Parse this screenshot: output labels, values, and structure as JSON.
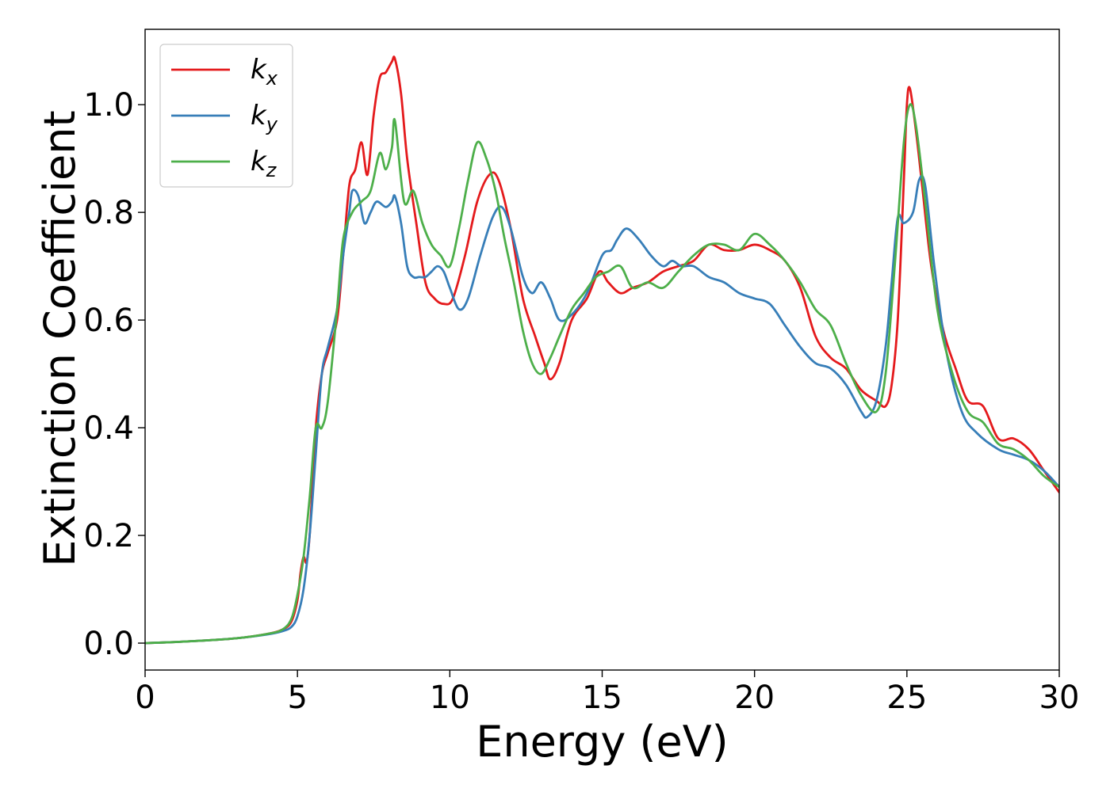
{
  "chart_data": {
    "type": "line",
    "title": "",
    "xlabel": "Energy (eV)",
    "ylabel": "Extinction Coefficient",
    "xlim": [
      0,
      30
    ],
    "ylim": [
      -0.05,
      1.14
    ],
    "xticks": [
      0,
      5,
      10,
      15,
      20,
      25,
      30
    ],
    "xtick_labels": [
      "0",
      "5",
      "10",
      "15",
      "20",
      "25",
      "30"
    ],
    "yticks": [
      0.0,
      0.2,
      0.4,
      0.6,
      0.8,
      1.0
    ],
    "ytick_labels": [
      "0.0",
      "0.2",
      "0.4",
      "0.6",
      "0.8",
      "1.0"
    ],
    "grid": false,
    "legend_position": "top-left",
    "series": [
      {
        "name": "k",
        "subscript": "x",
        "color": "#e41a1c",
        "x": [
          0,
          1,
          2,
          3,
          4,
          4.5,
          4.8,
          5.0,
          5.1,
          5.2,
          5.3,
          5.4,
          5.5,
          5.6,
          5.8,
          6.0,
          6.3,
          6.5,
          6.7,
          6.9,
          7.1,
          7.3,
          7.5,
          7.7,
          7.9,
          8.1,
          8.2,
          8.4,
          8.6,
          8.9,
          9.2,
          9.5,
          9.8,
          10.1,
          10.5,
          10.9,
          11.3,
          11.6,
          12.0,
          12.4,
          12.8,
          13.1,
          13.3,
          13.6,
          14.0,
          14.5,
          14.9,
          15.2,
          15.6,
          16.0,
          16.5,
          17.0,
          17.5,
          18.0,
          18.5,
          19.0,
          19.5,
          20.0,
          20.5,
          21.0,
          21.5,
          22.0,
          22.5,
          23.0,
          23.5,
          24.0,
          24.3,
          24.5,
          24.7,
          24.9,
          25.0,
          25.1,
          25.3,
          25.5,
          25.8,
          26.2,
          26.6,
          27.0,
          27.5,
          28.0,
          28.5,
          29.0,
          29.5,
          30.0
        ],
        "values": [
          0.0,
          0.002,
          0.005,
          0.009,
          0.017,
          0.025,
          0.04,
          0.08,
          0.13,
          0.16,
          0.15,
          0.2,
          0.3,
          0.4,
          0.5,
          0.54,
          0.6,
          0.72,
          0.85,
          0.88,
          0.93,
          0.87,
          0.98,
          1.05,
          1.06,
          1.08,
          1.085,
          1.02,
          0.9,
          0.78,
          0.67,
          0.64,
          0.63,
          0.64,
          0.72,
          0.82,
          0.87,
          0.86,
          0.77,
          0.64,
          0.57,
          0.52,
          0.49,
          0.52,
          0.6,
          0.64,
          0.69,
          0.67,
          0.65,
          0.66,
          0.67,
          0.69,
          0.7,
          0.71,
          0.74,
          0.73,
          0.73,
          0.74,
          0.73,
          0.71,
          0.66,
          0.57,
          0.53,
          0.51,
          0.47,
          0.45,
          0.44,
          0.48,
          0.6,
          0.86,
          1.0,
          1.03,
          0.95,
          0.85,
          0.7,
          0.58,
          0.51,
          0.45,
          0.44,
          0.38,
          0.38,
          0.36,
          0.32,
          0.28
        ]
      },
      {
        "name": "k",
        "subscript": "y",
        "color": "#377eb8",
        "x": [
          0,
          1,
          2,
          3,
          4,
          4.5,
          4.8,
          5.0,
          5.2,
          5.4,
          5.6,
          5.8,
          6.0,
          6.3,
          6.5,
          6.7,
          6.8,
          7.0,
          7.2,
          7.4,
          7.6,
          7.9,
          8.1,
          8.2,
          8.4,
          8.6,
          8.8,
          9.0,
          9.2,
          9.4,
          9.6,
          9.8,
          10.0,
          10.3,
          10.6,
          11.0,
          11.4,
          11.7,
          12.0,
          12.4,
          12.7,
          13.0,
          13.3,
          13.6,
          14.0,
          14.5,
          15.0,
          15.3,
          15.5,
          15.8,
          16.2,
          16.6,
          17.0,
          17.3,
          17.6,
          18.0,
          18.5,
          19.0,
          19.5,
          20.0,
          20.5,
          21.0,
          21.5,
          22.0,
          22.5,
          23.0,
          23.5,
          23.7,
          24.0,
          24.3,
          24.5,
          24.7,
          24.9,
          25.2,
          25.4,
          25.6,
          25.9,
          26.3,
          26.8,
          27.3,
          28.0,
          28.5,
          29.0,
          29.5,
          30.0
        ],
        "values": [
          0.0,
          0.002,
          0.005,
          0.009,
          0.016,
          0.022,
          0.03,
          0.05,
          0.1,
          0.2,
          0.35,
          0.5,
          0.55,
          0.62,
          0.72,
          0.8,
          0.84,
          0.83,
          0.78,
          0.8,
          0.82,
          0.81,
          0.82,
          0.83,
          0.78,
          0.7,
          0.68,
          0.68,
          0.68,
          0.69,
          0.7,
          0.69,
          0.66,
          0.62,
          0.64,
          0.72,
          0.79,
          0.81,
          0.77,
          0.68,
          0.65,
          0.67,
          0.64,
          0.6,
          0.61,
          0.65,
          0.72,
          0.73,
          0.75,
          0.77,
          0.75,
          0.72,
          0.7,
          0.71,
          0.7,
          0.7,
          0.68,
          0.67,
          0.65,
          0.64,
          0.63,
          0.59,
          0.55,
          0.52,
          0.51,
          0.48,
          0.43,
          0.42,
          0.45,
          0.55,
          0.67,
          0.79,
          0.78,
          0.8,
          0.86,
          0.85,
          0.7,
          0.54,
          0.43,
          0.39,
          0.36,
          0.35,
          0.34,
          0.32,
          0.29
        ]
      },
      {
        "name": "k",
        "subscript": "z",
        "color": "#4daf4a",
        "x": [
          0,
          1,
          2,
          3,
          4,
          4.5,
          4.8,
          5.0,
          5.2,
          5.4,
          5.6,
          5.8,
          6.0,
          6.3,
          6.5,
          6.8,
          7.1,
          7.4,
          7.7,
          7.9,
          8.1,
          8.2,
          8.5,
          8.8,
          9.1,
          9.4,
          9.7,
          10.0,
          10.3,
          10.6,
          10.9,
          11.2,
          11.5,
          11.8,
          12.1,
          12.4,
          12.7,
          13.0,
          13.3,
          13.6,
          14.0,
          14.4,
          14.8,
          15.2,
          15.6,
          16.0,
          16.5,
          17.0,
          17.5,
          18.0,
          18.5,
          19.0,
          19.5,
          20.0,
          20.5,
          21.0,
          21.5,
          22.0,
          22.5,
          23.0,
          23.5,
          24.0,
          24.3,
          24.6,
          24.9,
          25.1,
          25.3,
          25.6,
          26.0,
          26.5,
          27.0,
          27.5,
          28.0,
          28.5,
          29.0,
          29.5,
          30.0
        ],
        "values": [
          0.0,
          0.002,
          0.005,
          0.009,
          0.017,
          0.025,
          0.045,
          0.09,
          0.16,
          0.27,
          0.4,
          0.4,
          0.45,
          0.62,
          0.75,
          0.8,
          0.82,
          0.84,
          0.91,
          0.88,
          0.92,
          0.97,
          0.82,
          0.84,
          0.78,
          0.74,
          0.72,
          0.7,
          0.77,
          0.86,
          0.93,
          0.9,
          0.84,
          0.75,
          0.67,
          0.58,
          0.52,
          0.5,
          0.53,
          0.57,
          0.62,
          0.65,
          0.68,
          0.69,
          0.7,
          0.66,
          0.67,
          0.66,
          0.69,
          0.72,
          0.74,
          0.74,
          0.73,
          0.76,
          0.74,
          0.71,
          0.67,
          0.62,
          0.59,
          0.52,
          0.46,
          0.43,
          0.5,
          0.7,
          0.93,
          1.0,
          0.96,
          0.82,
          0.62,
          0.5,
          0.43,
          0.41,
          0.37,
          0.36,
          0.34,
          0.31,
          0.29
        ]
      }
    ]
  }
}
